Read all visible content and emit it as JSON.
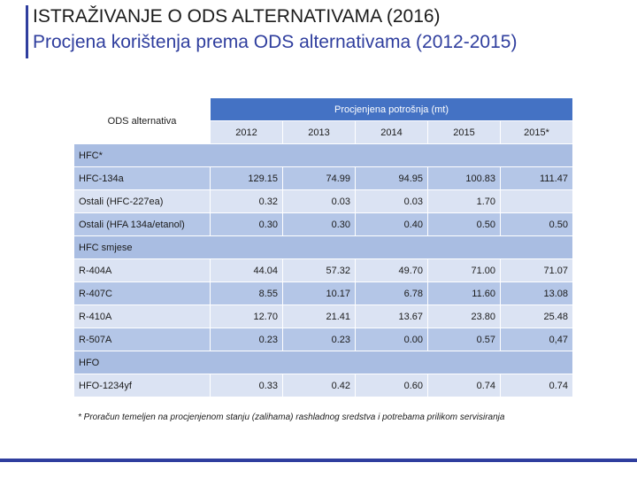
{
  "title": "ISTRAŽIVANJE O ODS ALTERNATIVAMA (2016)",
  "subtitle": "Procjena korištenja prema ODS alternativama (2012-2015)",
  "table": {
    "col_header_left": "ODS alternativa",
    "col_header_group": "Procjenjena potrošnja (mt)",
    "years": [
      "2012",
      "2013",
      "2014",
      "2015",
      "2015*"
    ],
    "sections": [
      {
        "label": "HFC*",
        "rows": [
          {
            "name": "HFC-134a",
            "values": [
              "129.15",
              "74.99",
              "94.95",
              "100.83",
              "111.47"
            ]
          },
          {
            "name": "Ostali (HFC-227ea)",
            "values": [
              "0.32",
              "0.03",
              "0.03",
              "1.70",
              ""
            ]
          },
          {
            "name": "Ostali (HFA 134a/etanol)",
            "values": [
              "0.30",
              "0.30",
              "0.40",
              "0.50",
              "0.50"
            ]
          }
        ]
      },
      {
        "label": "HFC smjese",
        "rows": [
          {
            "name": "R-404A",
            "values": [
              "44.04",
              "57.32",
              "49.70",
              "71.00",
              "71.07"
            ]
          },
          {
            "name": "R-407C",
            "values": [
              "8.55",
              "10.17",
              "6.78",
              "11.60",
              "13.08"
            ]
          },
          {
            "name": "R-410A",
            "values": [
              "12.70",
              "21.41",
              "13.67",
              "23.80",
              "25.48"
            ]
          },
          {
            "name": "R-507A",
            "values": [
              "0.23",
              "0.23",
              "0.00",
              "0.57",
              "0,47"
            ]
          }
        ]
      },
      {
        "label": "HFO",
        "rows": [
          {
            "name": "HFO-1234yf",
            "values": [
              "0.33",
              "0.42",
              "0.60",
              "0.74",
              "0.74"
            ]
          }
        ]
      }
    ]
  },
  "footnote": "* Proračun temeljen na procjenjenom stanju (zalihama) rashladnog sredstva i potrebama prilikom servisiranja",
  "colors": {
    "accent": "#2f3e9e",
    "header_blue": "#4472c4",
    "row_light": "#dbe3f3",
    "row_dark": "#b4c6e7"
  }
}
